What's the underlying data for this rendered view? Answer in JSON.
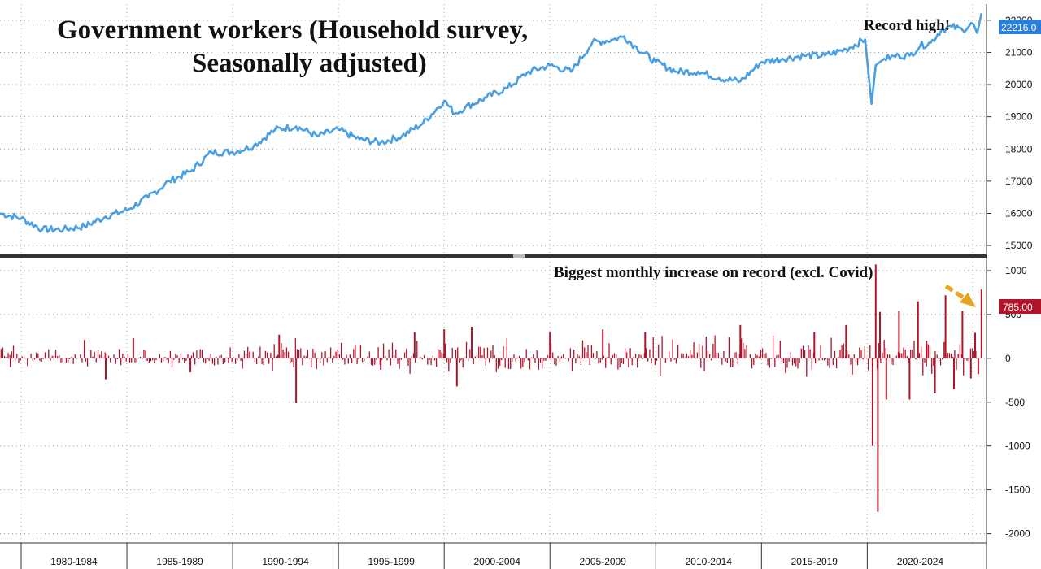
{
  "chart_data": [
    {
      "type": "line",
      "title": "Government workers (Household survey, Seasonally adjusted)",
      "title_lines": [
        "Government workers (Household survey,",
        "Seasonally adjusted)"
      ],
      "annotation": "Record high!",
      "last_value_label": "22216.0",
      "ylim": [
        14800,
        22400
      ],
      "yticks": [
        15000,
        16000,
        17000,
        18000,
        19000,
        20000,
        21000,
        22000
      ],
      "x": [
        1979.0,
        1980.0,
        1981.0,
        1982.0,
        1983.0,
        1984.0,
        1985.0,
        1986.0,
        1987.0,
        1988.0,
        1989.0,
        1990.0,
        1991.0,
        1992.0,
        1993.0,
        1994.0,
        1995.0,
        1996.0,
        1997.0,
        1998.0,
        1999.0,
        2000.0,
        2000.5,
        2001.0,
        2002.0,
        2003.0,
        2004.0,
        2005.0,
        2006.0,
        2007.0,
        2008.0,
        2008.5,
        2009.0,
        2010.0,
        2011.0,
        2012.0,
        2013.0,
        2014.0,
        2015.0,
        2016.0,
        2017.0,
        2018.0,
        2019.0,
        2019.9,
        2020.2,
        2020.4,
        2020.8,
        2021.5,
        2022.0,
        2022.5,
        2023.0,
        2023.5,
        2024.0,
        2024.5,
        2025.0,
        2025.2,
        2025.4
      ],
      "values": [
        16000,
        15850,
        15500,
        15500,
        15600,
        15900,
        16100,
        16500,
        17000,
        17300,
        17900,
        17900,
        18100,
        18600,
        18700,
        18400,
        18600,
        18300,
        18200,
        18400,
        18800,
        19500,
        19100,
        19300,
        19600,
        19900,
        20400,
        20600,
        20400,
        21300,
        21400,
        21500,
        21200,
        20700,
        20400,
        20400,
        20200,
        20100,
        20700,
        20800,
        20900,
        20900,
        21100,
        21400,
        19400,
        20600,
        20800,
        20900,
        20900,
        21200,
        21300,
        21700,
        21800,
        21700,
        21900,
        21600,
        22216
      ]
    },
    {
      "type": "bar",
      "annotation": "Biggest monthly increase on record (excl. Covid)",
      "last_value_label": "785.00",
      "ylim": [
        -2050,
        1120
      ],
      "yticks": [
        1000,
        500,
        0,
        -500,
        -1000,
        -1500,
        -2000
      ],
      "x": [
        1979.5,
        1983.0,
        1984.0,
        1985.3,
        1988.0,
        1992.2,
        1993.0,
        1997.0,
        1998.6,
        2000.0,
        2000.6,
        2001.3,
        2005.0,
        2007.5,
        2009.5,
        2014.0,
        2017.5,
        2019.0,
        2020.25,
        2020.4,
        2020.5,
        2020.6,
        2020.9,
        2021.5,
        2022.0,
        2022.4,
        2022.8,
        2023.2,
        2023.7,
        2024.1,
        2024.5,
        2024.9,
        2025.1,
        2025.25,
        2025.4
      ],
      "values": [
        -100,
        210,
        -240,
        230,
        -160,
        270,
        -510,
        -130,
        300,
        330,
        -320,
        360,
        300,
        330,
        300,
        380,
        300,
        380,
        -1000,
        1070,
        -1750,
        530,
        -470,
        540,
        -470,
        650,
        200,
        -400,
        720,
        -350,
        540,
        -230,
        290,
        -180,
        785
      ]
    }
  ],
  "x_axis": {
    "labels": [
      "1980-1984",
      "1985-1989",
      "1990-1994",
      "1995-1999",
      "2000-2004",
      "2005-2009",
      "2010-2014",
      "2015-2019",
      "2020-2024"
    ]
  },
  "colors": {
    "line": "#4a9fe0",
    "bar": "#b0142b",
    "arrow": "#e6a520",
    "label_bg_blue": "#2b7fd8",
    "label_bg_red": "#b0142b"
  }
}
